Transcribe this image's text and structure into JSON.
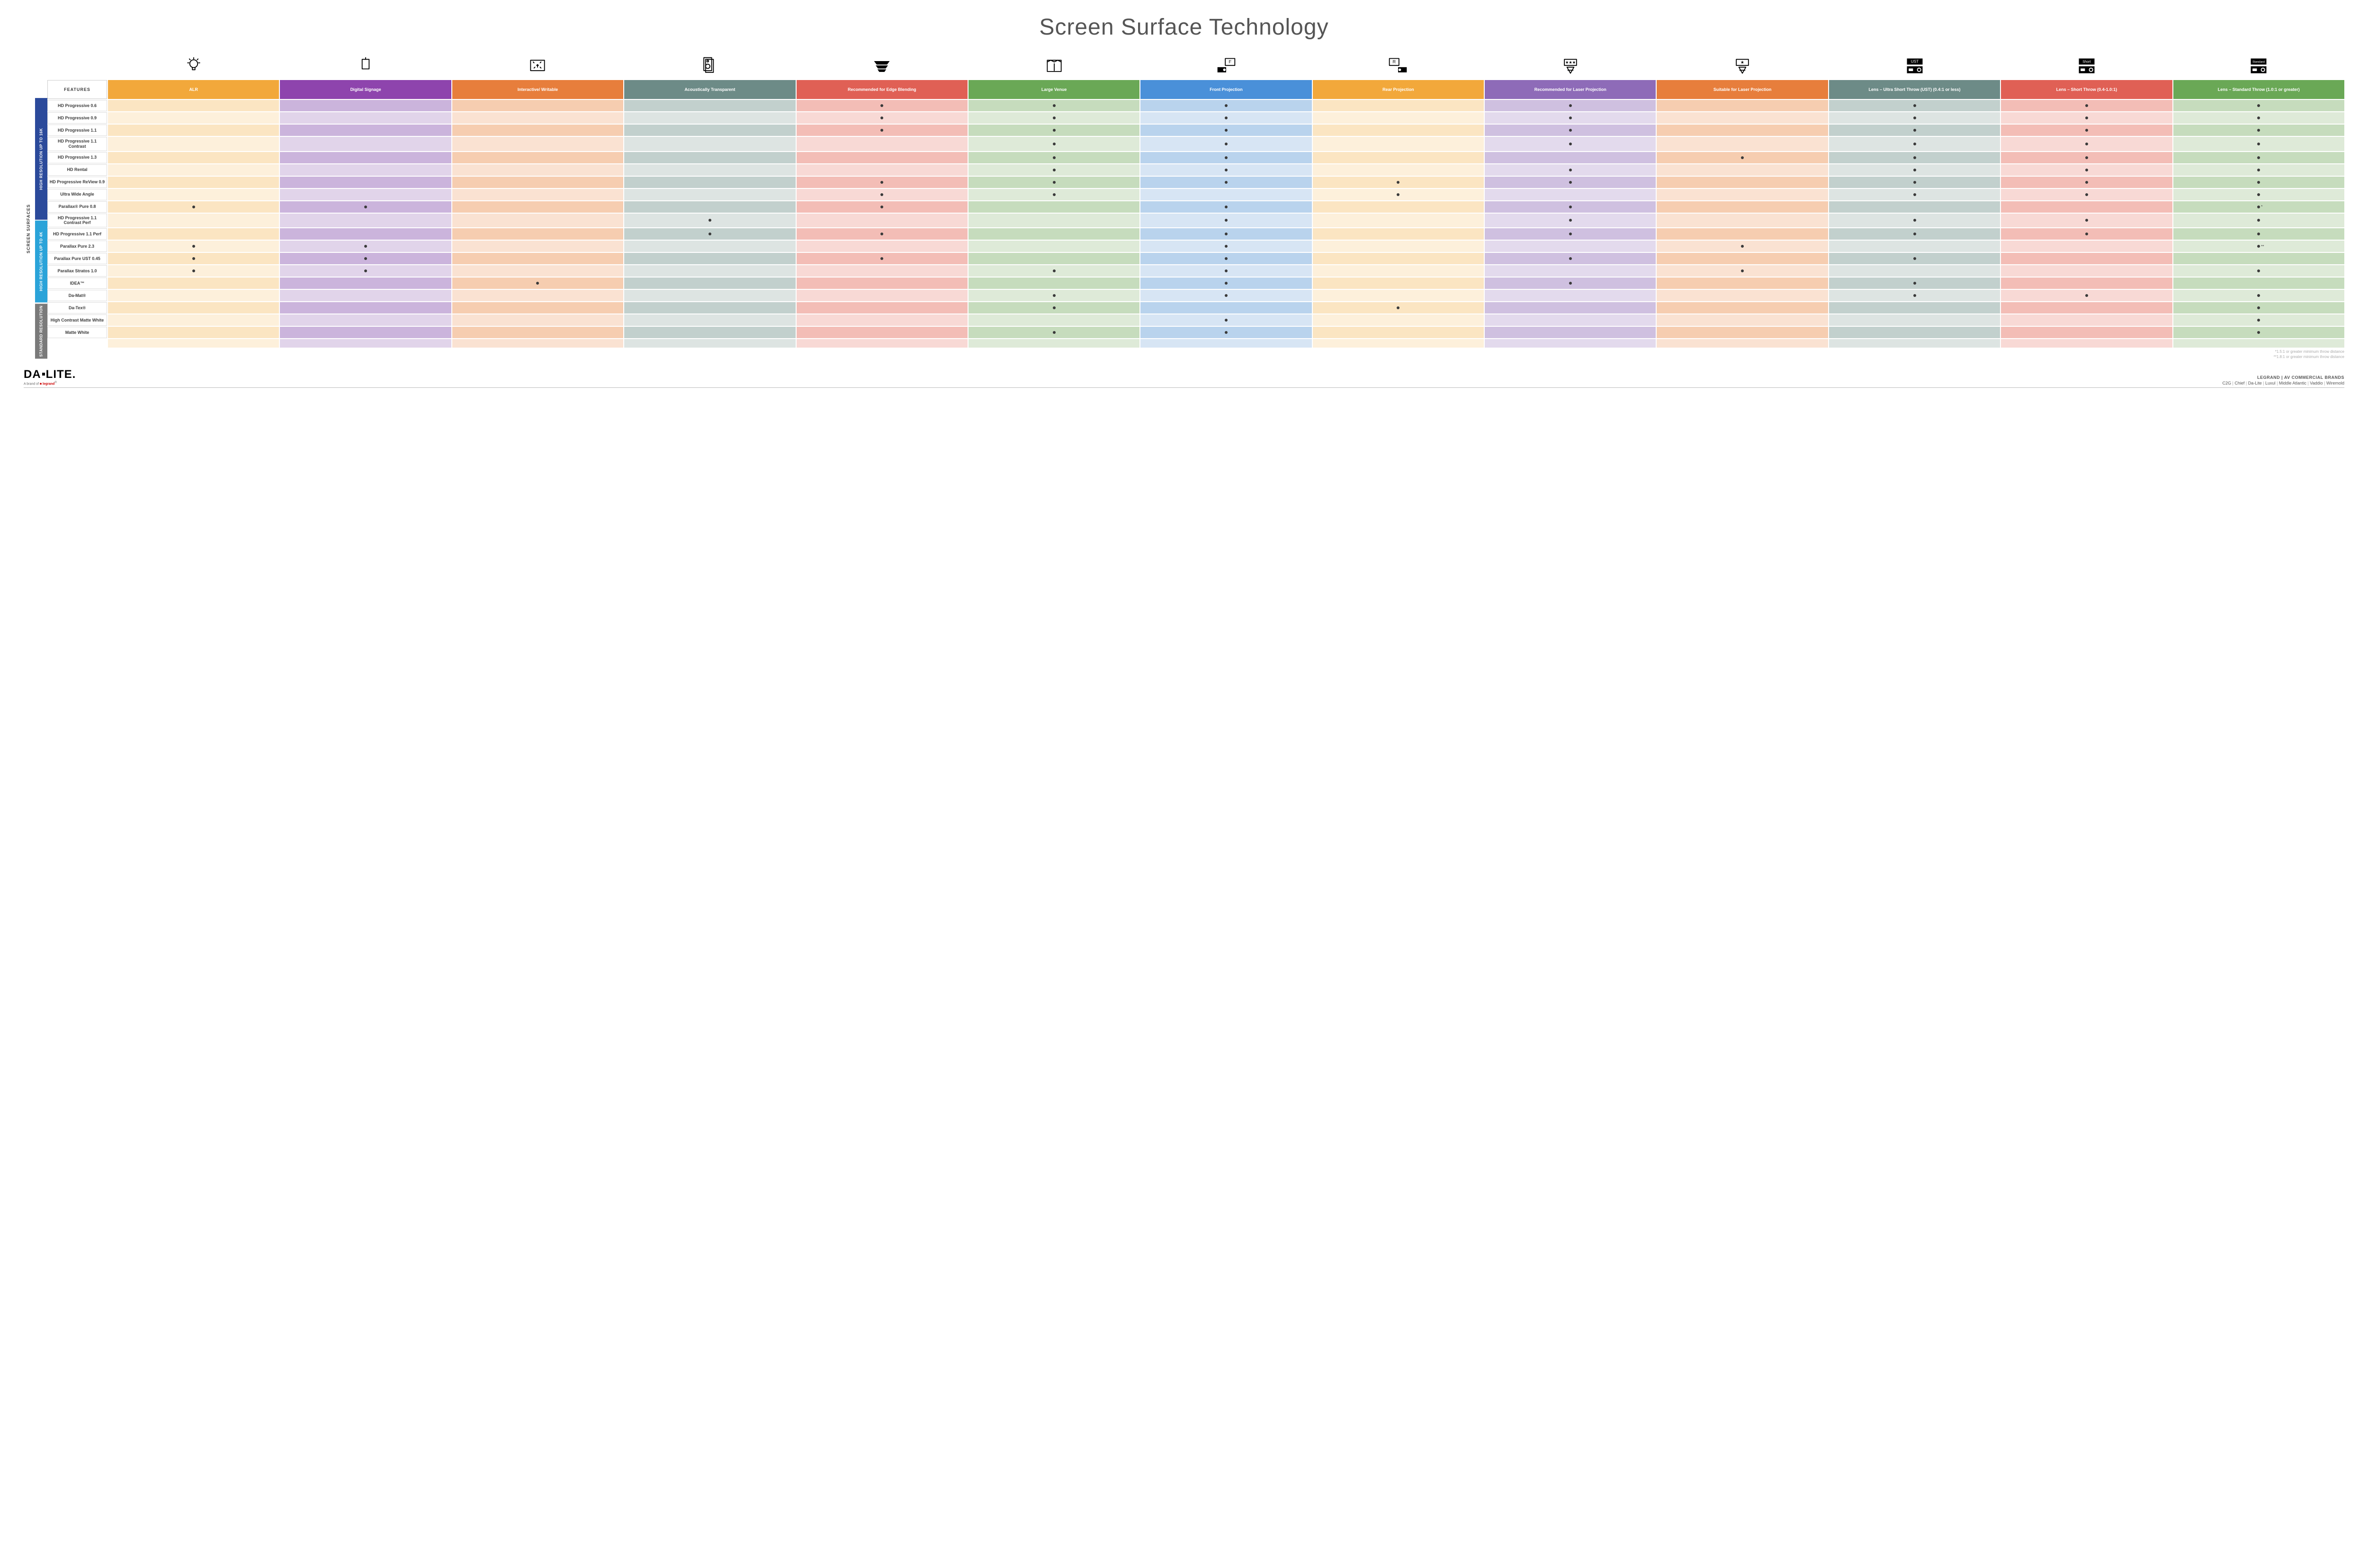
{
  "title": "Screen Surface Technology",
  "vertical_label": "SCREEN SURFACES",
  "features_label": "FEATURES",
  "columns": [
    {
      "key": "alr",
      "label": "ALR",
      "color": "#f2a83b",
      "light": "#fbe5c2",
      "lighter": "#fdf0db"
    },
    {
      "key": "signage",
      "label": "Digital Signage",
      "color": "#8e44ad",
      "light": "#cbb4dc",
      "lighter": "#e1d4ea"
    },
    {
      "key": "interactive",
      "label": "Interactive/ Writable",
      "color": "#e77e3c",
      "light": "#f6cdb0",
      "lighter": "#fae2d2"
    },
    {
      "key": "acoustic",
      "label": "Acoustically Transparent",
      "color": "#6d8b87",
      "light": "#c2d0cd",
      "lighter": "#dde4e2"
    },
    {
      "key": "edge",
      "label": "Recommended for Edge Blending",
      "color": "#e06055",
      "light": "#f3bdb6",
      "lighter": "#f8d9d5"
    },
    {
      "key": "venue",
      "label": "Large Venue",
      "color": "#6aa856",
      "light": "#c6dcbd",
      "lighter": "#deead8"
    },
    {
      "key": "front",
      "label": "Front Projection",
      "color": "#4a90d9",
      "light": "#b9d3ed",
      "lighter": "#d7e5f4"
    },
    {
      "key": "rear",
      "label": "Rear Projection",
      "color": "#f2a83b",
      "light": "#fbe5c2",
      "lighter": "#fdf0db"
    },
    {
      "key": "laser_rec",
      "label": "Recommended for Laser Projection",
      "color": "#8e6bb8",
      "light": "#cfc0e0",
      "lighter": "#e3daed"
    },
    {
      "key": "laser_suit",
      "label": "Suitable for Laser Projection",
      "color": "#e77e3c",
      "light": "#f6cdb0",
      "lighter": "#fae2d2"
    },
    {
      "key": "ust",
      "label": "Lens – Ultra Short Throw (UST) (0.4:1 or less)",
      "color": "#6d8b87",
      "light": "#c2d0cd",
      "lighter": "#dde4e2"
    },
    {
      "key": "short",
      "label": "Lens – Short Throw (0.4-1.0:1)",
      "color": "#e06055",
      "light": "#f3bdb6",
      "lighter": "#f8d9d5"
    },
    {
      "key": "std",
      "label": "Lens – Standard Throw (1.0:1 or greater)",
      "color": "#6aa856",
      "light": "#c6dcbd",
      "lighter": "#deead8"
    }
  ],
  "groups": [
    {
      "label": "HIGH RESOLUTION UP TO 16K",
      "color": "#2b4a9b",
      "rows": [
        {
          "name": "HD Progressive 0.6",
          "marks": {
            "edge": "•",
            "venue": "•",
            "front": "•",
            "laser_rec": "•",
            "ust": "•",
            "short": "•",
            "std": "•"
          }
        },
        {
          "name": "HD Progressive 0.9",
          "marks": {
            "edge": "•",
            "venue": "•",
            "front": "•",
            "laser_rec": "•",
            "ust": "•",
            "short": "•",
            "std": "•"
          }
        },
        {
          "name": "HD Progressive 1.1",
          "marks": {
            "edge": "•",
            "venue": "•",
            "front": "•",
            "laser_rec": "•",
            "ust": "•",
            "short": "•",
            "std": "•"
          }
        },
        {
          "name": "HD Progressive 1.1 Contrast",
          "marks": {
            "venue": "•",
            "front": "•",
            "laser_rec": "•",
            "ust": "•",
            "short": "•",
            "std": "•"
          }
        },
        {
          "name": "HD Progressive 1.3",
          "marks": {
            "venue": "•",
            "front": "•",
            "laser_suit": "•",
            "ust": "•",
            "short": "•",
            "std": "•"
          }
        },
        {
          "name": "HD Rental",
          "marks": {
            "venue": "•",
            "front": "•",
            "laser_rec": "•",
            "ust": "•",
            "short": "•",
            "std": "•"
          }
        },
        {
          "name": "HD Progressive ReView 0.9",
          "marks": {
            "edge": "•",
            "venue": "•",
            "front": "•",
            "rear": "•",
            "laser_rec": "•",
            "ust": "•",
            "short": "•",
            "std": "•"
          }
        },
        {
          "name": "Ultra Wide Angle",
          "marks": {
            "edge": "•",
            "venue": "•",
            "rear": "•",
            "ust": "•",
            "short": "•",
            "std": "•"
          }
        },
        {
          "name": "Parallax® Pure 0.8",
          "marks": {
            "alr": "•",
            "signage": "•",
            "edge": "•",
            "front": "•",
            "laser_rec": "•",
            "std": "•*"
          }
        }
      ]
    },
    {
      "label": "HIGH RESOLUTION UP TO 4K",
      "color": "#2aa3d9",
      "rows": [
        {
          "name": "HD Progressive 1.1 Contrast Perf",
          "marks": {
            "acoustic": "•",
            "front": "•",
            "laser_rec": "•",
            "ust": "•",
            "short": "•",
            "std": "•"
          }
        },
        {
          "name": "HD Progressive 1.1 Perf",
          "marks": {
            "acoustic": "•",
            "edge": "•",
            "front": "•",
            "laser_rec": "•",
            "ust": "•",
            "short": "•",
            "std": "•"
          }
        },
        {
          "name": "Parallax Pure 2.3",
          "marks": {
            "alr": "•",
            "signage": "•",
            "front": "•",
            "laser_suit": "•",
            "std": "•**"
          }
        },
        {
          "name": "Parallax Pure UST 0.45",
          "marks": {
            "alr": "•",
            "signage": "•",
            "edge": "•",
            "front": "•",
            "laser_rec": "•",
            "ust": "•"
          }
        },
        {
          "name": "Parallax Stratos 1.0",
          "marks": {
            "alr": "•",
            "signage": "•",
            "venue": "•",
            "front": "•",
            "laser_suit": "•",
            "std": "•"
          }
        },
        {
          "name": "IDEA™",
          "marks": {
            "interactive": "•",
            "front": "•",
            "laser_rec": "•",
            "ust": "•"
          }
        }
      ]
    },
    {
      "label": "STANDARD RESOLUTION",
      "color": "#7a7a7a",
      "rows": [
        {
          "name": "Da-Mat®",
          "marks": {
            "venue": "•",
            "front": "•",
            "ust": "•",
            "short": "•",
            "std": "•"
          }
        },
        {
          "name": "Da-Tex®",
          "marks": {
            "venue": "•",
            "rear": "•",
            "std": "•"
          }
        },
        {
          "name": "High Contrast Matte White",
          "marks": {
            "front": "•",
            "std": "•"
          }
        },
        {
          "name": "Matte White",
          "marks": {
            "venue": "•",
            "front": "•",
            "std": "•"
          }
        }
      ]
    }
  ],
  "footnotes": [
    "*1.5:1 or greater minimum throw distance",
    "**1.8:1 or greater minimum throw distance"
  ],
  "logo": {
    "part1": "DA",
    "part2": "LITE.",
    "subline": "A brand of ",
    "brand": "legrand"
  },
  "brands_right": {
    "heading": "LEGRAND | AV COMMERCIAL BRANDS",
    "list": [
      "C2G",
      "Chief",
      "Da-Lite",
      "Luxul",
      "Middle Atlantic",
      "Vaddio",
      "Wiremold"
    ]
  },
  "icons": [
    "bulb",
    "lamp",
    "touch",
    "speaker",
    "blend",
    "venue",
    "frontproj",
    "rearproj",
    "laser3",
    "laser1",
    "ust",
    "short",
    "standard"
  ]
}
